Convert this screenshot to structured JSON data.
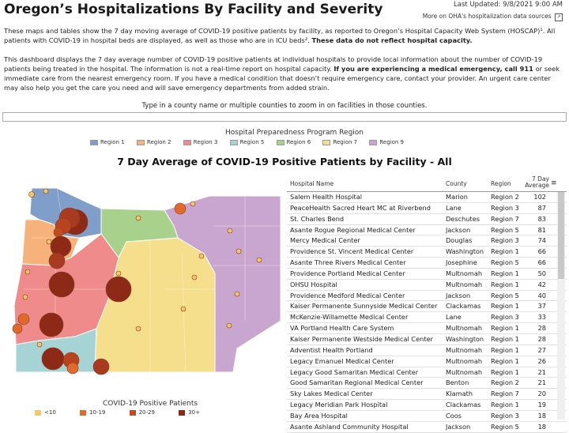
{
  "header": {
    "title": "Oregon’s Hospitalizations By Facility and Severity",
    "last_updated": "Last Updated: 9/8/2021 9:00 AM",
    "data_sources_link": "More on OHA's hospitalization data sources"
  },
  "intro": {
    "p1_text": "These maps and tables show the 7 day moving average of COVID-19 positive patients by facility, as reported to Oregon’s Hospital Capacity Web System (HOSCAP)¹. All patients with COVID-19 in hospital beds are displayed, as well as those who are in ICU beds².",
    "p1_bold": "These data do not reflect hospital capacity.",
    "p2_text_a": "This dashboard displays the 7 day average number of COVID-19 positive patients at individual hospitals to provide local information about the number of COVID-19 patients being treated in the hospital. The information is not a real-time report on hospital capacity.",
    "p2_bold": "If you are experiencing a medical emergency, call 911",
    "p2_text_b": "or seek immediate care from the nearest emergency room. If you have a medical condition that doesn’t require emergency care, contact your provider. An urgent care center may also help you get the care you need and will save emergency departments from added strain."
  },
  "search": {
    "prompt": "Type in a county name or multiple counties to zoom in on facilities in those counties.",
    "value": ""
  },
  "region_legend": {
    "title": "Hospital Preparedness Program Region",
    "items": [
      {
        "label": "Region 1",
        "color": "#7f9fca"
      },
      {
        "label": "Region 2",
        "color": "#f6b27a"
      },
      {
        "label": "Region 3",
        "color": "#ef8b8b"
      },
      {
        "label": "Region 5",
        "color": "#a6d4d4"
      },
      {
        "label": "Region 6",
        "color": "#a8d18c"
      },
      {
        "label": "Region 7",
        "color": "#f5df8c"
      },
      {
        "label": "Region 9",
        "color": "#c9a6cf"
      }
    ]
  },
  "chart_title": "7 Day Average of COVID-19 Positive Patients by Facility - All",
  "size_legend": {
    "title": "COVID-19 Positive Patients",
    "items": [
      {
        "label": "<10",
        "color": "#f2c86b"
      },
      {
        "label": "10-19",
        "color": "#e06a2a"
      },
      {
        "label": "20-29",
        "color": "#c24c22"
      },
      {
        "label": "30+",
        "color": "#8c2a17"
      }
    ]
  },
  "table": {
    "headers": {
      "hospital": "Hospital Name",
      "county": "County",
      "region": "Region",
      "value_line1": "7 Day",
      "value_line2": "Average"
    },
    "rows": [
      {
        "name": "Salem Health Hospital",
        "county": "Marion",
        "region": "Region 2",
        "value": "102"
      },
      {
        "name": "PeaceHealth Sacred Heart MC at Riverbend",
        "county": "Lane",
        "region": "Region 3",
        "value": "87"
      },
      {
        "name": "St. Charles Bend",
        "county": "Deschutes",
        "region": "Region 7",
        "value": "83"
      },
      {
        "name": "Asante Rogue Regional Medical Center",
        "county": "Jackson",
        "region": "Region 5",
        "value": "81"
      },
      {
        "name": "Mercy Medical Center",
        "county": "Douglas",
        "region": "Region 3",
        "value": "74"
      },
      {
        "name": "Providence St. Vincent Medical Center",
        "county": "Washington",
        "region": "Region 1",
        "value": "66"
      },
      {
        "name": "Asante Three Rivers Medical Center",
        "county": "Josephine",
        "region": "Region 5",
        "value": "66"
      },
      {
        "name": "Providence Portland Medical Center",
        "county": "Multnomah",
        "region": "Region 1",
        "value": "50"
      },
      {
        "name": "OHSU Hospital",
        "county": "Multnomah",
        "region": "Region 1",
        "value": "42"
      },
      {
        "name": "Providence Medford Medical Center",
        "county": "Jackson",
        "region": "Region 5",
        "value": "40"
      },
      {
        "name": "Kaiser Permanente Sunnyside Medical Center",
        "county": "Clackamas",
        "region": "Region 1",
        "value": "37"
      },
      {
        "name": "McKenzie-Willamette Medical Center",
        "county": "Lane",
        "region": "Region 3",
        "value": "33"
      },
      {
        "name": "VA Portland Health Care System",
        "county": "Multnomah",
        "region": "Region 1",
        "value": "28"
      },
      {
        "name": "Kaiser Permanente Westside Medical Center",
        "county": "Washington",
        "region": "Region 1",
        "value": "28"
      },
      {
        "name": "Adventist Health Portland",
        "county": "Multnomah",
        "region": "Region 1",
        "value": "27"
      },
      {
        "name": "Legacy Emanuel Medical Center",
        "county": "Multnomah",
        "region": "Region 1",
        "value": "26"
      },
      {
        "name": "Legacy Good Samaritan Medical Center",
        "county": "Multnomah",
        "region": "Region 1",
        "value": "21"
      },
      {
        "name": "Good Samaritan Regional Medical Center",
        "county": "Benton",
        "region": "Region 2",
        "value": "21"
      },
      {
        "name": "Sky Lakes Medical Center",
        "county": "Klamath",
        "region": "Region 7",
        "value": "20"
      },
      {
        "name": "Legacy Meridian Park Hospital",
        "county": "Clackamas",
        "region": "Region 1",
        "value": "19"
      },
      {
        "name": "Bay Area Hospital",
        "county": "Coos",
        "region": "Region 3",
        "value": "18"
      },
      {
        "name": "Asante Ashland Community Hospital",
        "county": "Jackson",
        "region": "Region 5",
        "value": "18"
      }
    ]
  }
}
